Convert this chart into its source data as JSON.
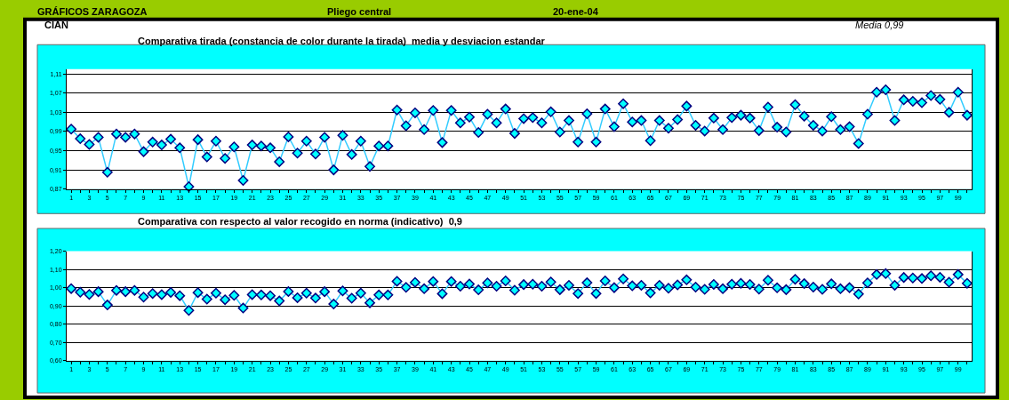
{
  "chart_data": [
    {
      "type": "line",
      "title": "Comparativa tirada (constancia de color durante la tirada)  media y desviacion estandar",
      "annotations": [
        "GRÁFICOS ZARAGOZA",
        "Pliego central",
        "20-ene-04",
        "CIAN",
        "Media 0,99"
      ],
      "x": [
        1,
        2,
        3,
        4,
        5,
        6,
        7,
        8,
        9,
        10,
        11,
        12,
        13,
        14,
        15,
        16,
        17,
        18,
        19,
        20,
        21,
        22,
        23,
        24,
        25,
        26,
        27,
        28,
        29,
        30,
        31,
        32,
        33,
        34,
        35,
        36,
        37,
        38,
        39,
        40,
        41,
        42,
        43,
        44,
        45,
        46,
        47,
        48,
        49,
        50,
        51,
        52,
        53,
        54,
        55,
        56,
        57,
        58,
        59,
        60,
        61,
        62,
        63,
        64,
        65,
        66,
        67,
        68,
        69,
        70,
        71,
        72,
        73,
        74,
        75,
        76,
        77,
        78,
        79,
        80,
        81,
        82,
        83,
        84,
        85,
        86,
        87,
        88,
        89,
        90,
        91,
        92,
        93,
        94,
        95,
        96,
        97,
        98,
        99,
        100
      ],
      "series": [
        {
          "color": "#33ccff",
          "values": [
            0.995,
            0.975,
            0.963,
            0.978,
            0.905,
            0.985,
            0.978,
            0.985,
            0.948,
            0.968,
            0.962,
            0.974,
            0.956,
            0.875,
            0.973,
            0.937,
            0.97,
            0.934,
            0.958,
            0.888,
            0.962,
            0.96,
            0.956,
            0.927,
            0.979,
            0.945,
            0.97,
            0.943,
            0.978,
            0.91,
            0.982,
            0.942,
            0.97,
            0.917,
            0.96,
            0.96,
            1.035,
            1.002,
            1.029,
            0.994,
            1.034,
            0.967,
            1.034,
            1.008,
            1.02,
            0.988,
            1.026,
            1.008,
            1.037,
            0.986,
            1.017,
            1.019,
            1.008,
            1.031,
            0.989,
            1.013,
            0.968,
            1.027,
            0.968,
            1.037,
            1.0,
            1.048,
            1.01,
            1.013,
            0.971,
            1.013,
            0.997,
            1.015,
            1.043,
            1.003,
            0.991,
            1.018,
            0.994,
            1.019,
            1.024,
            1.018,
            0.992,
            1.041,
            0.999,
            0.989,
            1.046,
            1.022,
            1.003,
            0.991,
            1.021,
            0.994,
            1.0,
            0.965,
            1.026,
            1.072,
            1.077,
            1.013,
            1.056,
            1.053,
            1.05,
            1.065,
            1.057,
            1.03,
            1.072,
            1.024
          ]
        }
      ],
      "xlim": [
        0.5,
        100.5
      ],
      "xticks": [
        1,
        3,
        5,
        7,
        9,
        11,
        13,
        15,
        17,
        19,
        21,
        23,
        25,
        27,
        29,
        31,
        33,
        35,
        37,
        39,
        41,
        43,
        45,
        47,
        49,
        51,
        53,
        55,
        57,
        59,
        61,
        63,
        65,
        67,
        69,
        71,
        73,
        75,
        77,
        79,
        81,
        83,
        85,
        87,
        89,
        91,
        93,
        95,
        97,
        99
      ],
      "ylim": [
        0.87,
        1.12
      ],
      "yticks": [
        {
          "value": 0.87,
          "label": "0,87"
        },
        {
          "value": 0.91,
          "label": "0,91"
        },
        {
          "value": 0.95,
          "label": "0,95"
        },
        {
          "value": 0.99,
          "label": "0,99"
        },
        {
          "value": 1.03,
          "label": "1,03"
        },
        {
          "value": 1.07,
          "label": "1,07"
        },
        {
          "value": 1.11,
          "label": "1,11"
        }
      ],
      "grid": "y",
      "marker": "diamond",
      "line_style": "solid"
    },
    {
      "type": "line",
      "title": "Comparativa con respecto al valor recogido en norma (indicativo)  0,9",
      "x": [
        1,
        2,
        3,
        4,
        5,
        6,
        7,
        8,
        9,
        10,
        11,
        12,
        13,
        14,
        15,
        16,
        17,
        18,
        19,
        20,
        21,
        22,
        23,
        24,
        25,
        26,
        27,
        28,
        29,
        30,
        31,
        32,
        33,
        34,
        35,
        36,
        37,
        38,
        39,
        40,
        41,
        42,
        43,
        44,
        45,
        46,
        47,
        48,
        49,
        50,
        51,
        52,
        53,
        54,
        55,
        56,
        57,
        58,
        59,
        60,
        61,
        62,
        63,
        64,
        65,
        66,
        67,
        68,
        69,
        70,
        71,
        72,
        73,
        74,
        75,
        76,
        77,
        78,
        79,
        80,
        81,
        82,
        83,
        84,
        85,
        86,
        87,
        88,
        89,
        90,
        91,
        92,
        93,
        94,
        95,
        96,
        97,
        98,
        99,
        100
      ],
      "series": [
        {
          "color": "#33ccff",
          "values": [
            0.995,
            0.975,
            0.963,
            0.978,
            0.905,
            0.985,
            0.978,
            0.985,
            0.948,
            0.968,
            0.962,
            0.974,
            0.956,
            0.875,
            0.973,
            0.937,
            0.97,
            0.934,
            0.958,
            0.888,
            0.962,
            0.96,
            0.956,
            0.927,
            0.979,
            0.945,
            0.97,
            0.943,
            0.978,
            0.91,
            0.982,
            0.942,
            0.97,
            0.917,
            0.96,
            0.96,
            1.035,
            1.002,
            1.029,
            0.994,
            1.034,
            0.967,
            1.034,
            1.008,
            1.02,
            0.988,
            1.026,
            1.008,
            1.037,
            0.986,
            1.017,
            1.019,
            1.008,
            1.031,
            0.989,
            1.013,
            0.968,
            1.027,
            0.968,
            1.037,
            1.0,
            1.048,
            1.01,
            1.013,
            0.971,
            1.013,
            0.997,
            1.015,
            1.043,
            1.003,
            0.991,
            1.018,
            0.994,
            1.019,
            1.024,
            1.018,
            0.992,
            1.041,
            0.999,
            0.989,
            1.046,
            1.022,
            1.003,
            0.991,
            1.021,
            0.994,
            1.0,
            0.965,
            1.026,
            1.072,
            1.077,
            1.013,
            1.056,
            1.053,
            1.05,
            1.065,
            1.057,
            1.03,
            1.072,
            1.024
          ]
        }
      ],
      "xlim": [
        0.5,
        100.5
      ],
      "xticks": [
        1,
        3,
        5,
        7,
        9,
        11,
        13,
        15,
        17,
        19,
        21,
        23,
        25,
        27,
        29,
        31,
        33,
        35,
        37,
        39,
        41,
        43,
        45,
        47,
        49,
        51,
        53,
        55,
        57,
        59,
        61,
        63,
        65,
        67,
        69,
        71,
        73,
        75,
        77,
        79,
        81,
        83,
        85,
        87,
        89,
        91,
        93,
        95,
        97,
        99
      ],
      "ylim": [
        0.6,
        1.2
      ],
      "yticks": [
        {
          "value": 0.6,
          "label": "0,60"
        },
        {
          "value": 0.7,
          "label": "0,70"
        },
        {
          "value": 0.8,
          "label": "0,80"
        },
        {
          "value": 0.9,
          "label": "0,90"
        },
        {
          "value": 1.0,
          "label": "1,00"
        },
        {
          "value": 1.1,
          "label": "1,10"
        },
        {
          "value": 1.2,
          "label": "1,20"
        }
      ],
      "grid": "y",
      "marker": "diamond",
      "line_style": "solid"
    }
  ]
}
